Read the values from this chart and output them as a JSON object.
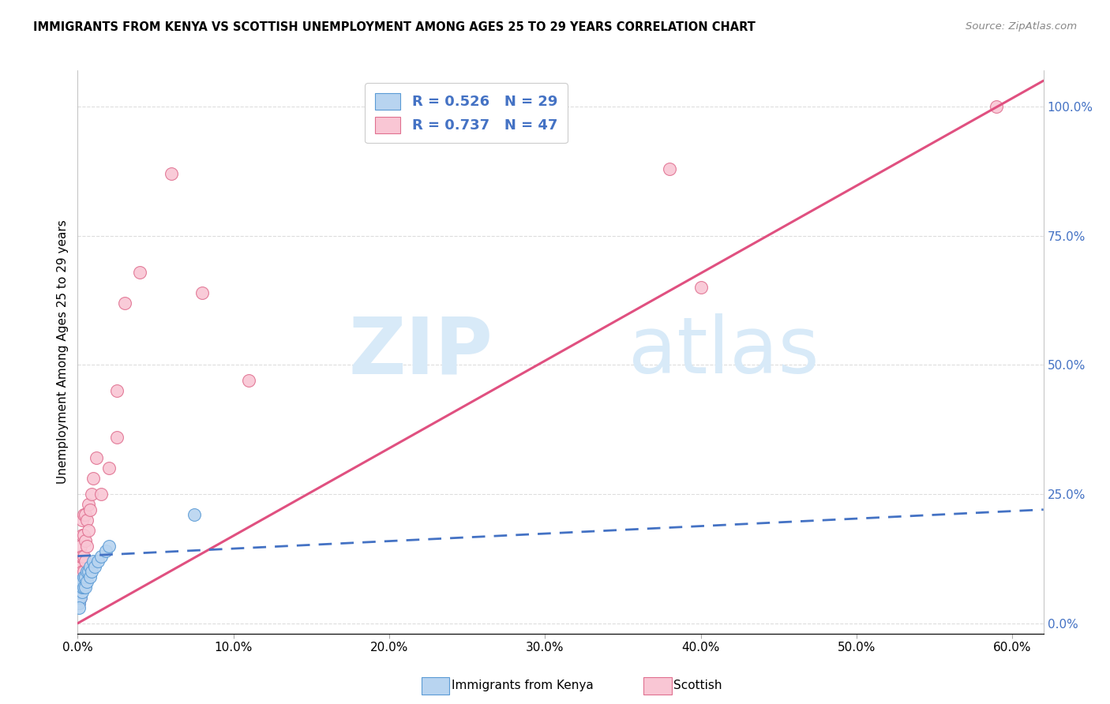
{
  "title": "IMMIGRANTS FROM KENYA VS SCOTTISH UNEMPLOYMENT AMONG AGES 25 TO 29 YEARS CORRELATION CHART",
  "source": "Source: ZipAtlas.com",
  "ylabel": "Unemployment Among Ages 25 to 29 years",
  "legend_kenya_R": "0.526",
  "legend_kenya_N": "29",
  "legend_scottish_R": "0.737",
  "legend_scottish_N": "47",
  "kenya_fill_color": "#b8d4f0",
  "kenya_edge_color": "#5b9bd5",
  "kenya_line_color": "#4472c4",
  "scottish_fill_color": "#f9c6d4",
  "scottish_edge_color": "#e07090",
  "scottish_line_color": "#e05080",
  "watermark_zip": "ZIP",
  "watermark_atlas": "atlas",
  "watermark_color": "#d8eaf8",
  "right_ytick_vals": [
    0.0,
    0.25,
    0.5,
    0.75,
    1.0
  ],
  "right_ytick_labels": [
    "0.0%",
    "25.0%",
    "50.0%",
    "75.0%",
    "100.0%"
  ],
  "xtick_vals": [
    0.0,
    0.1,
    0.2,
    0.3,
    0.4,
    0.5,
    0.6
  ],
  "xtick_labels": [
    "0.0%",
    "10.0%",
    "20.0%",
    "30.0%",
    "40.0%",
    "50.0%",
    "60.0%"
  ],
  "xlim": [
    0.0,
    0.62
  ],
  "ylim": [
    -0.02,
    1.07
  ],
  "kenya_scatter_x": [
    0.001,
    0.001,
    0.001,
    0.001,
    0.001,
    0.002,
    0.002,
    0.002,
    0.003,
    0.003,
    0.003,
    0.004,
    0.004,
    0.005,
    0.005,
    0.006,
    0.006,
    0.007,
    0.008,
    0.008,
    0.009,
    0.01,
    0.011,
    0.013,
    0.015,
    0.018,
    0.02,
    0.075,
    0.001
  ],
  "kenya_scatter_y": [
    0.04,
    0.05,
    0.06,
    0.07,
    0.08,
    0.05,
    0.07,
    0.08,
    0.06,
    0.07,
    0.08,
    0.07,
    0.09,
    0.07,
    0.09,
    0.08,
    0.1,
    0.1,
    0.09,
    0.11,
    0.1,
    0.12,
    0.11,
    0.12,
    0.13,
    0.14,
    0.15,
    0.21,
    0.03
  ],
  "kenya_line_x": [
    0.0,
    0.62
  ],
  "kenya_line_y": [
    0.13,
    0.22
  ],
  "scottish_scatter_x": [
    0.001,
    0.001,
    0.001,
    0.001,
    0.001,
    0.001,
    0.001,
    0.001,
    0.001,
    0.002,
    0.002,
    0.002,
    0.002,
    0.002,
    0.002,
    0.003,
    0.003,
    0.003,
    0.003,
    0.003,
    0.004,
    0.004,
    0.004,
    0.004,
    0.005,
    0.005,
    0.005,
    0.006,
    0.006,
    0.007,
    0.007,
    0.008,
    0.009,
    0.01,
    0.012,
    0.015,
    0.02,
    0.025,
    0.025,
    0.03,
    0.04,
    0.06,
    0.08,
    0.11,
    0.38,
    0.4,
    0.59
  ],
  "scottish_scatter_y": [
    0.04,
    0.05,
    0.06,
    0.07,
    0.08,
    0.09,
    0.1,
    0.11,
    0.12,
    0.05,
    0.07,
    0.09,
    0.11,
    0.13,
    0.15,
    0.07,
    0.1,
    0.13,
    0.17,
    0.2,
    0.1,
    0.13,
    0.17,
    0.21,
    0.12,
    0.16,
    0.21,
    0.15,
    0.2,
    0.18,
    0.23,
    0.22,
    0.25,
    0.28,
    0.32,
    0.25,
    0.3,
    0.36,
    0.45,
    0.62,
    0.68,
    0.87,
    0.64,
    0.47,
    0.88,
    0.65,
    1.0
  ],
  "scottish_line_x": [
    0.0,
    0.62
  ],
  "scottish_line_y": [
    0.0,
    1.05
  ],
  "figsize": [
    14.06,
    8.92
  ],
  "dpi": 100
}
